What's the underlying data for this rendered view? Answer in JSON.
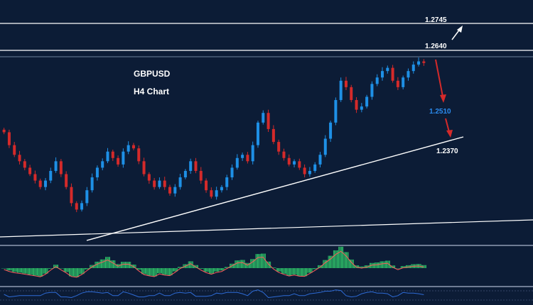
{
  "chart_data": {
    "type": "candlestick",
    "symbol": "GBPUSD",
    "timeframe": "H4 Chart",
    "colors": {
      "background": "#0c1c36",
      "bull_candle": "#1e90e6",
      "bear_candle": "#d42a2a",
      "lines": "#ffffff",
      "target_label": "#2b8cf0",
      "histogram": "#2fc46a",
      "signal": "#ff5a5a",
      "rsi_line": "#2e6bd6"
    },
    "levels": [
      {
        "value": "1.2745",
        "kind": "resistance"
      },
      {
        "value": "1.2640",
        "kind": "resistance"
      },
      {
        "value": "1.2510",
        "kind": "target",
        "color": "#2b8cf0"
      },
      {
        "value": "1.2370",
        "kind": "support"
      }
    ],
    "close_path": [
      1.242,
      1.238,
      1.235,
      1.233,
      1.231,
      1.229,
      1.227,
      1.225,
      1.227,
      1.23,
      1.233,
      1.229,
      1.225,
      1.22,
      1.218,
      1.22,
      1.224,
      1.228,
      1.231,
      1.233,
      1.236,
      1.234,
      1.232,
      1.236,
      1.238,
      1.237,
      1.233,
      1.229,
      1.227,
      1.225,
      1.227,
      1.225,
      1.223,
      1.225,
      1.228,
      1.23,
      1.233,
      1.23,
      1.227,
      1.224,
      1.222,
      1.224,
      1.225,
      1.228,
      1.231,
      1.234,
      1.235,
      1.233,
      1.238,
      1.245,
      1.248,
      1.243,
      1.239,
      1.236,
      1.234,
      1.232,
      1.233,
      1.231,
      1.229,
      1.23,
      1.232,
      1.235,
      1.24,
      1.245,
      1.252,
      1.258,
      1.256,
      1.252,
      1.249,
      1.25,
      1.253,
      1.257,
      1.259,
      1.261,
      1.262,
      1.258,
      1.256,
      1.259,
      1.261,
      1.263,
      1.264,
      1.2635
    ],
    "arrows": [
      {
        "direction": "up",
        "toward": "1.2745",
        "color": "#ffffff"
      },
      {
        "direction": "down",
        "toward": "1.2510",
        "color": "#d42a2a"
      },
      {
        "direction": "down",
        "toward": "1.2370",
        "color": "#d42a2a"
      }
    ]
  }
}
